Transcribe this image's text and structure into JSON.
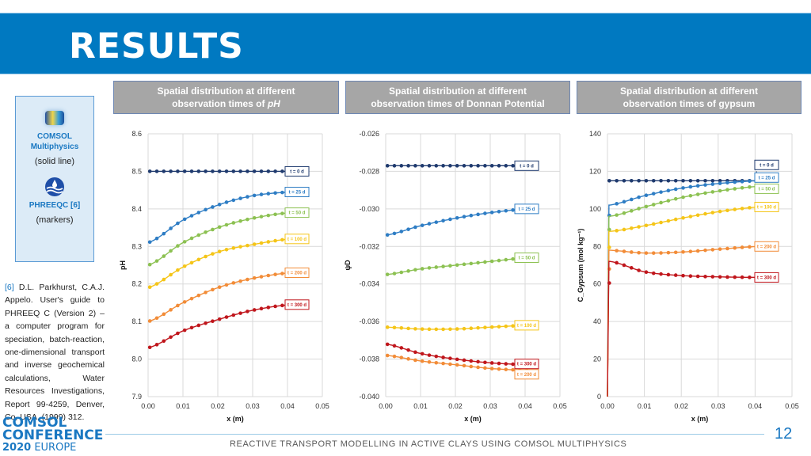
{
  "header": {
    "title": "RESULTS"
  },
  "panels": [
    {
      "line1": "Spatial distribution at different",
      "line2_prefix": "observation times of ",
      "line2_em": "pH"
    },
    {
      "line1": "Spatial distribution at different",
      "line2_prefix": "observation times of Donnan Potential",
      "line2_em": ""
    },
    {
      "line1": "Spatial distribution at different",
      "line2_prefix": "observation times of gypsum",
      "line2_em": ""
    }
  ],
  "legend": {
    "comsol_name_1": "COMSOL",
    "comsol_name_2": "Multiphysics",
    "comsol_style": "(solid line)",
    "phreeqc_name": "PHREEQC [6]",
    "phreeqc_style": "(markers)"
  },
  "reference": {
    "num": "[6]",
    "text": " D.L. Parkhurst, C.A.J. Appelo. User's guide to PHREEQ C (Version 2) – a computer program for speciation, batch-reaction, one-dimensional transport and inverse geochemical calculations, Water Resources Investigations, Report 99-4259, Denver, Co, USA, (1999) 312."
  },
  "logo": {
    "line1": "COMSOL",
    "line2": "CONFERENCE",
    "year": "2020",
    "region": "EUROPE"
  },
  "footer": {
    "text": "REACTIVE TRANSPORT MODELLING IN ACTIVE CLAYS USING COMSOL MULTIPHYSICS",
    "page": "12"
  },
  "series_colors": {
    "t = 0 d": "#1f3a6e",
    "t = 25 d": "#2e7dc4",
    "t = 50 d": "#8cc152",
    "t = 100 d": "#f5c518",
    "t = 200 d": "#f28c38",
    "t = 300 d": "#c0161c"
  },
  "chart_data": [
    {
      "type": "line",
      "title": "pH",
      "xlabel": "x (m)",
      "ylabel": "pH",
      "xlim": [
        0,
        0.05
      ],
      "ylim": [
        7.9,
        8.6
      ],
      "xticks": [
        "0.00",
        "0.01",
        "0.02",
        "0.03",
        "0.04",
        "0.05"
      ],
      "yticks": [
        "7.9",
        "8.0",
        "8.1",
        "8.2",
        "8.3",
        "8.4",
        "8.5",
        "8.6"
      ],
      "grid": true,
      "series": [
        {
          "name": "t = 0 d",
          "x": [
            0,
            0.01,
            0.02,
            0.03,
            0.041
          ],
          "values": [
            8.5,
            8.5,
            8.5,
            8.5,
            8.5
          ]
        },
        {
          "name": "t = 25 d",
          "x": [
            0,
            0.01,
            0.02,
            0.03,
            0.041
          ],
          "values": [
            8.31,
            8.37,
            8.41,
            8.435,
            8.445
          ]
        },
        {
          "name": "t = 50 d",
          "x": [
            0,
            0.01,
            0.02,
            0.03,
            0.041
          ],
          "values": [
            8.25,
            8.31,
            8.35,
            8.375,
            8.39
          ]
        },
        {
          "name": "t = 100 d",
          "x": [
            0,
            0.01,
            0.02,
            0.03,
            0.041
          ],
          "values": [
            8.19,
            8.245,
            8.285,
            8.305,
            8.32
          ]
        },
        {
          "name": "t = 200 d",
          "x": [
            0,
            0.01,
            0.02,
            0.03,
            0.041
          ],
          "values": [
            8.1,
            8.15,
            8.19,
            8.215,
            8.23
          ]
        },
        {
          "name": "t = 300 d",
          "x": [
            0,
            0.01,
            0.02,
            0.03,
            0.041
          ],
          "values": [
            8.03,
            8.075,
            8.105,
            8.13,
            8.145
          ]
        }
      ]
    },
    {
      "type": "line",
      "title": "Donnan Potential",
      "xlabel": "x (m)",
      "ylabel": "ψD",
      "xlim": [
        0,
        0.05
      ],
      "ylim": [
        -0.04,
        -0.026
      ],
      "xticks": [
        "0.00",
        "0.01",
        "0.02",
        "0.03",
        "0.04",
        "0.05"
      ],
      "yticks": [
        "-0.040",
        "-0.038",
        "-0.036",
        "-0.034",
        "-0.032",
        "-0.030",
        "-0.028",
        "-0.026"
      ],
      "grid": true,
      "series": [
        {
          "name": "t = 0 d",
          "x": [
            0,
            0.01,
            0.02,
            0.03,
            0.041
          ],
          "values": [
            -0.0277,
            -0.0277,
            -0.0277,
            -0.0277,
            -0.0277
          ]
        },
        {
          "name": "t = 25 d",
          "x": [
            0,
            0.01,
            0.02,
            0.03,
            0.041
          ],
          "values": [
            -0.0314,
            -0.0309,
            -0.0305,
            -0.0302,
            -0.03
          ]
        },
        {
          "name": "t = 50 d",
          "x": [
            0,
            0.01,
            0.02,
            0.03,
            0.041
          ],
          "values": [
            -0.0335,
            -0.0332,
            -0.033,
            -0.0328,
            -0.0326
          ]
        },
        {
          "name": "t = 100 d",
          "x": [
            0,
            0.01,
            0.02,
            0.03,
            0.041
          ],
          "values": [
            -0.0363,
            -0.0364,
            -0.0364,
            -0.0363,
            -0.0362
          ]
        },
        {
          "name": "t = 200 d",
          "x": [
            0,
            0.01,
            0.02,
            0.03,
            0.041
          ],
          "values": [
            -0.0378,
            -0.0381,
            -0.0383,
            -0.0385,
            -0.0386
          ]
        },
        {
          "name": "t = 300 d",
          "x": [
            0,
            0.01,
            0.02,
            0.03,
            0.041
          ],
          "values": [
            -0.0372,
            -0.0377,
            -0.038,
            -0.0382,
            -0.0383
          ]
        }
      ]
    },
    {
      "type": "line",
      "title": "Gypsum",
      "xlabel": "x (m)",
      "ylabel": "C_Gypsum (mol kg⁻¹)",
      "xlim": [
        0,
        0.05
      ],
      "ylim": [
        0,
        140
      ],
      "xticks": [
        "0.00",
        "0.01",
        "0.02",
        "0.03",
        "0.04",
        "0.05"
      ],
      "yticks": [
        "0",
        "20",
        "40",
        "60",
        "80",
        "100",
        "120",
        "140"
      ],
      "grid": true,
      "series": [
        {
          "name": "t = 0 d",
          "x": [
            0,
            0.01,
            0.02,
            0.03,
            0.041
          ],
          "values": [
            115,
            115,
            115,
            115,
            115
          ]
        },
        {
          "name": "t = 25 d",
          "x": [
            0,
            0.0005,
            0.01,
            0.02,
            0.03,
            0.041
          ],
          "values": [
            0,
            102,
            107,
            111,
            113.5,
            115
          ]
        },
        {
          "name": "t = 50 d",
          "x": [
            0,
            0.0005,
            0.01,
            0.02,
            0.03,
            0.041
          ],
          "values": [
            0,
            96,
            101,
            106,
            109.5,
            112
          ]
        },
        {
          "name": "t = 100 d",
          "x": [
            0,
            0.0005,
            0.01,
            0.02,
            0.03,
            0.041
          ],
          "values": [
            0,
            88,
            91,
            95,
            98.5,
            101
          ]
        },
        {
          "name": "t = 200 d",
          "x": [
            0,
            0.0005,
            0.01,
            0.02,
            0.03,
            0.041
          ],
          "values": [
            0,
            78,
            76.5,
            77,
            78.5,
            80
          ]
        },
        {
          "name": "t = 300 d",
          "x": [
            0,
            0.0008,
            0.01,
            0.02,
            0.03,
            0.041
          ],
          "values": [
            0,
            72,
            66.5,
            64.5,
            63.8,
            63.5
          ]
        }
      ]
    }
  ]
}
